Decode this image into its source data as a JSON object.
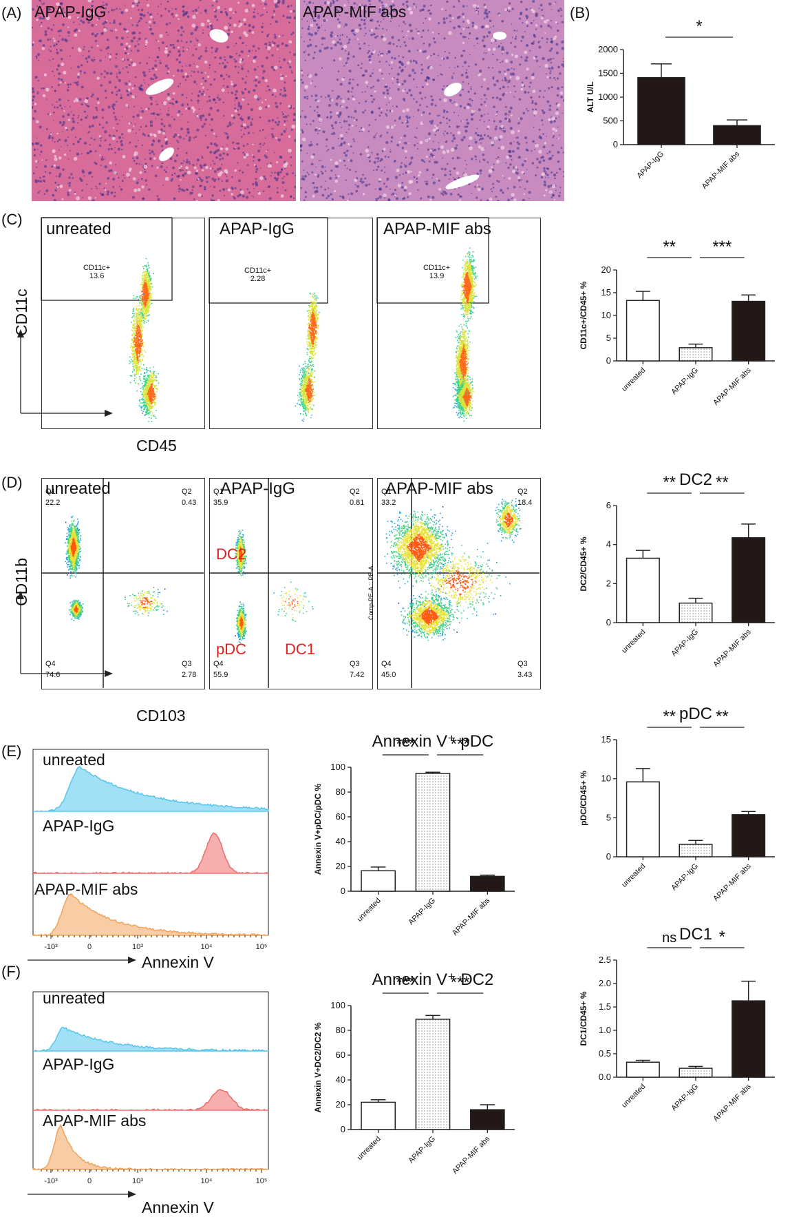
{
  "panels": {
    "A": "(A)",
    "B": "(B)",
    "C": "(C)",
    "D": "(D)",
    "E": "(E)",
    "F": "(F)"
  },
  "histology": {
    "left_label": "APAP-IgG",
    "right_label": "APAP-MIF abs",
    "colors": {
      "left_bg": "#d76b9a",
      "right_bg": "#c78bc0",
      "nuclei": "#3b2e86",
      "vessel": "#ffffff"
    }
  },
  "flow_c": {
    "titles": [
      "unreated",
      "APAP-IgG",
      "APAP-MIF abs"
    ],
    "gate_name": "CD11c+",
    "gate_values": [
      "13.6",
      "2.28",
      "13.9"
    ],
    "ylabel": "CD11c",
    "xlabel": "CD45"
  },
  "flow_d": {
    "titles": [
      "unreated",
      "APAP-IgG",
      "APAP-MIF abs"
    ],
    "quadrants": [
      {
        "q1": "22.2",
        "q2": "0.43",
        "q3": "2.78",
        "q4": "74.6",
        "q1n": "Q1",
        "q2n": "Q2",
        "q3n": "Q3",
        "q4n": "Q4"
      },
      {
        "q1": "35.9",
        "q2": "0.81",
        "q3": "7.42",
        "q4": "55.9",
        "q1n": "Q1",
        "q2n": "Q2",
        "q3n": "Q3",
        "q4n": "Q4"
      },
      {
        "q1": "33.2",
        "q2": "18.4",
        "q3": "3.43",
        "q4": "45.0",
        "q1n": "Q1",
        "q2n": "Q2",
        "q3n": "Q3",
        "q4n": "Q4"
      }
    ],
    "red_labels": {
      "dc2": "DC2",
      "pdc": "pDC",
      "dc1": "DC1"
    },
    "axis_overlay": "Comp-PE-A :: PE-A",
    "ylabel": "CD11b",
    "xlabel": "CD103"
  },
  "histograms_e": {
    "labels": [
      "unreated",
      "APAP-IgG",
      "APAP-MIF abs"
    ],
    "xlabel": "Annexin V",
    "ticks": [
      "-10³",
      "0",
      "10³",
      "10⁴",
      "10⁵"
    ],
    "colors": [
      "#56c6ec",
      "#ef6b6b",
      "#f3a35a"
    ]
  },
  "histograms_f": {
    "labels": [
      "unreated",
      "APAP-IgG",
      "APAP-MIF abs"
    ],
    "xlabel": "Annexin V",
    "ticks": [
      "-10³",
      "0",
      "10³",
      "10⁴",
      "10⁵"
    ],
    "colors": [
      "#56c6ec",
      "#ef6b6b",
      "#f3a35a"
    ]
  },
  "chart_data": [
    {
      "id": "B",
      "type": "bar",
      "title": "",
      "categories": [
        "APAP-IgG",
        "APAP-MIF abs"
      ],
      "values": [
        1410,
        400
      ],
      "errors": [
        290,
        120
      ],
      "fills": [
        "black",
        "black"
      ],
      "ylabel": "ALT U/L",
      "ylim": [
        0,
        2000
      ],
      "yticks": [
        "0",
        "500",
        "1000",
        "1500",
        "2000"
      ],
      "sig": [
        {
          "label": "*",
          "from": 0,
          "to": 1
        }
      ]
    },
    {
      "id": "C",
      "type": "bar",
      "title": "",
      "categories": [
        "unreated",
        "APAP-IgG",
        "APAP-MIF abs"
      ],
      "values": [
        13.3,
        2.9,
        13.1
      ],
      "errors": [
        2.0,
        0.8,
        1.4
      ],
      "fills": [
        "white",
        "dots",
        "black"
      ],
      "ylabel": "CD11c+/CD45+ %",
      "ylim": [
        0,
        20
      ],
      "yticks": [
        "0",
        "5",
        "10",
        "15",
        "20"
      ],
      "sig": [
        {
          "label": "**",
          "from": 0,
          "to": 1
        },
        {
          "label": "***",
          "from": 1,
          "to": 2
        }
      ]
    },
    {
      "id": "DC2",
      "type": "bar",
      "title": "DC2",
      "categories": [
        "unreated",
        "APAP-IgG",
        "APAP-MIF abs"
      ],
      "values": [
        3.3,
        1.0,
        4.35
      ],
      "errors": [
        0.4,
        0.25,
        0.7
      ],
      "fills": [
        "white",
        "dots",
        "black"
      ],
      "ylabel": "DC2/CD45+ %",
      "ylim": [
        0,
        6
      ],
      "yticks": [
        "0",
        "2",
        "4",
        "6"
      ],
      "sig": [
        {
          "label": "**",
          "from": 0,
          "to": 1
        },
        {
          "label": "**",
          "from": 1,
          "to": 2
        }
      ]
    },
    {
      "id": "pDC",
      "type": "bar",
      "title": "pDC",
      "categories": [
        "unreated",
        "APAP-IgG",
        "APAP-MIF abs"
      ],
      "values": [
        9.6,
        1.6,
        5.4
      ],
      "errors": [
        1.7,
        0.5,
        0.4
      ],
      "fills": [
        "white",
        "dots",
        "black"
      ],
      "ylabel": "pDC/CD45+ %",
      "ylim": [
        0,
        15
      ],
      "yticks": [
        "0",
        "5",
        "10",
        "15"
      ],
      "sig": [
        {
          "label": "**",
          "from": 0,
          "to": 1
        },
        {
          "label": "**",
          "from": 1,
          "to": 2
        }
      ]
    },
    {
      "id": "DC1",
      "type": "bar",
      "title": "DC1",
      "categories": [
        "unreated",
        "APAP-IgG",
        "APAP-MIF abs"
      ],
      "values": [
        0.32,
        0.19,
        1.63
      ],
      "errors": [
        0.04,
        0.04,
        0.42
      ],
      "fills": [
        "white",
        "dots",
        "black"
      ],
      "ylabel": "DC1/CD45+ %",
      "ylim": [
        0,
        2.5
      ],
      "yticks": [
        "0.0",
        "0.5",
        "1.0",
        "1.5",
        "2.0",
        "2.5"
      ],
      "sig": [
        {
          "label": "ns",
          "from": 0,
          "to": 1
        },
        {
          "label": "*",
          "from": 1,
          "to": 2
        }
      ]
    },
    {
      "id": "AnnV-pDC",
      "type": "bar",
      "title": "Annexin V⁺ pDC",
      "categories": [
        "unreated",
        "APAP-IgG",
        "APAP-MIF abs"
      ],
      "values": [
        16.5,
        95,
        12
      ],
      "errors": [
        3,
        1,
        1
      ],
      "fills": [
        "white",
        "dots",
        "black"
      ],
      "ylabel": "Annexin V+pDC/pDC %",
      "ylim": [
        0,
        100
      ],
      "yticks": [
        "0",
        "20",
        "40",
        "60",
        "80",
        "100"
      ],
      "sig": [
        {
          "label": "***",
          "from": 0,
          "to": 1
        },
        {
          "label": "***",
          "from": 1,
          "to": 2
        }
      ]
    },
    {
      "id": "AnnV-DC2",
      "type": "bar",
      "title": "Annexin V⁺ DC2",
      "categories": [
        "unreated",
        "APAP-IgG",
        "APAP-MIF abs"
      ],
      "values": [
        22,
        89,
        16
      ],
      "errors": [
        2,
        3,
        4
      ],
      "fills": [
        "white",
        "dots",
        "black"
      ],
      "ylabel": "Annexin V+DC2/DC2 %",
      "ylim": [
        0,
        100
      ],
      "yticks": [
        "0",
        "20",
        "40",
        "60",
        "80",
        "100"
      ],
      "sig": [
        {
          "label": "***",
          "from": 0,
          "to": 1
        },
        {
          "label": "***",
          "from": 1,
          "to": 2
        }
      ]
    }
  ]
}
